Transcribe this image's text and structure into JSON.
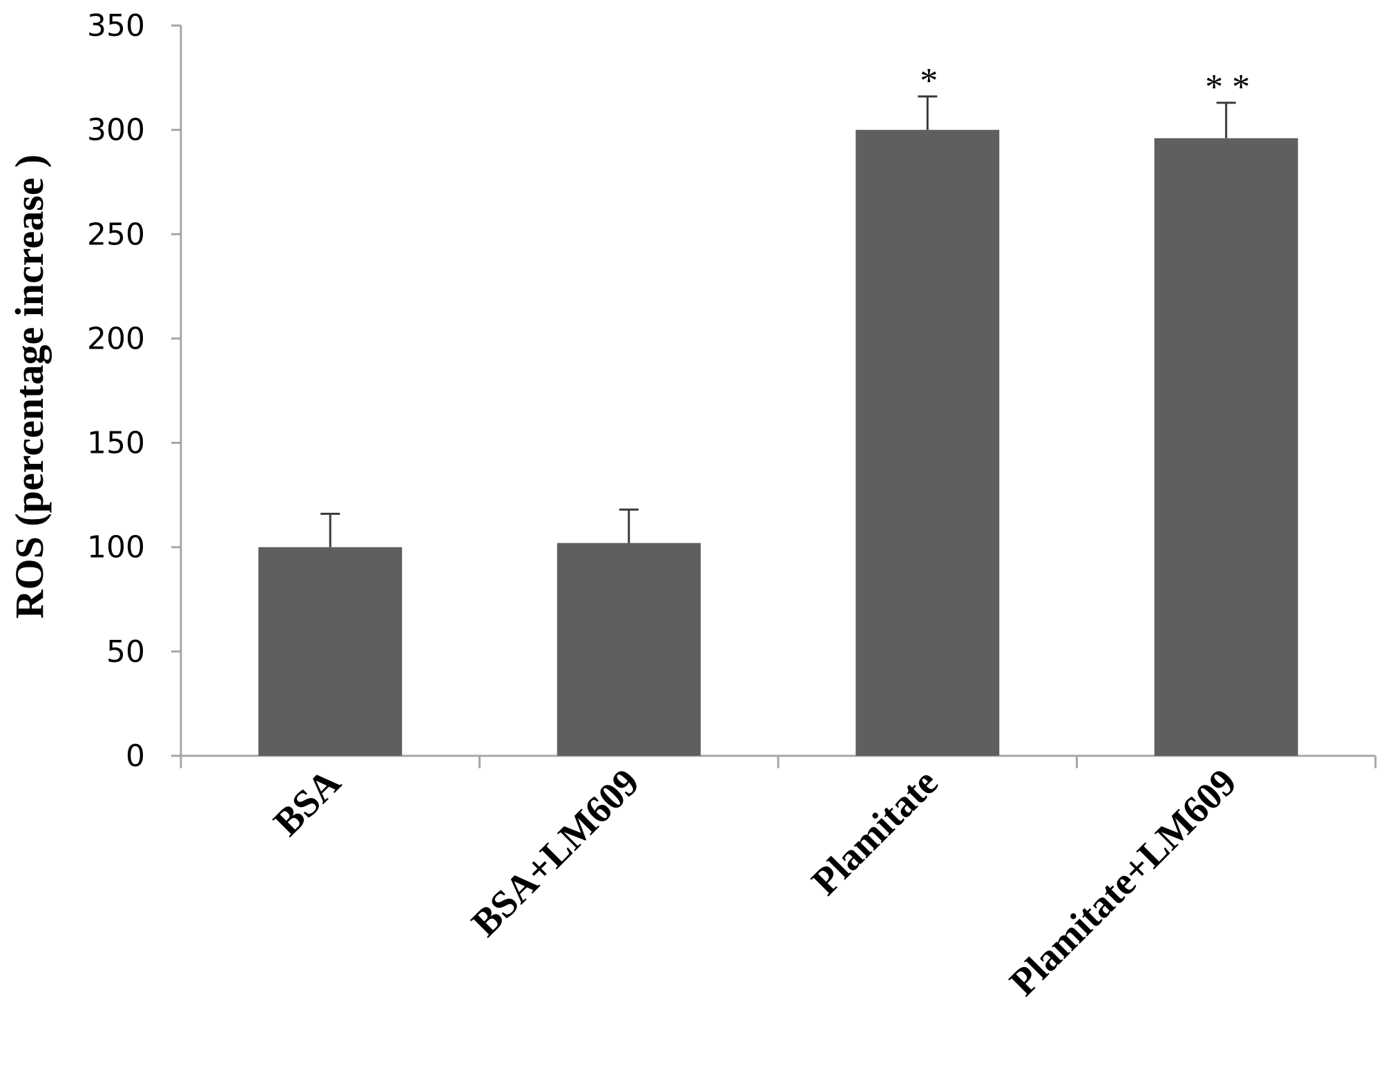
{
  "chart_data": {
    "type": "bar",
    "title": "",
    "xlabel": "",
    "ylabel": "ROS (percentage increase )",
    "ylim": [
      0,
      350
    ],
    "yticks": [
      0,
      50,
      100,
      150,
      200,
      250,
      300,
      350
    ],
    "categories": [
      "BSA",
      "BSA+LM609",
      "Plamitate",
      "Plamitate+LM609"
    ],
    "values": [
      100,
      102,
      300,
      296
    ],
    "error_upper": [
      16,
      16,
      16,
      17
    ],
    "annotations": [
      "",
      "",
      "*",
      "* *"
    ],
    "grid": false,
    "legend": "none",
    "bar_color": "#5f5f5f",
    "axis_color": "#a6a6a6"
  }
}
